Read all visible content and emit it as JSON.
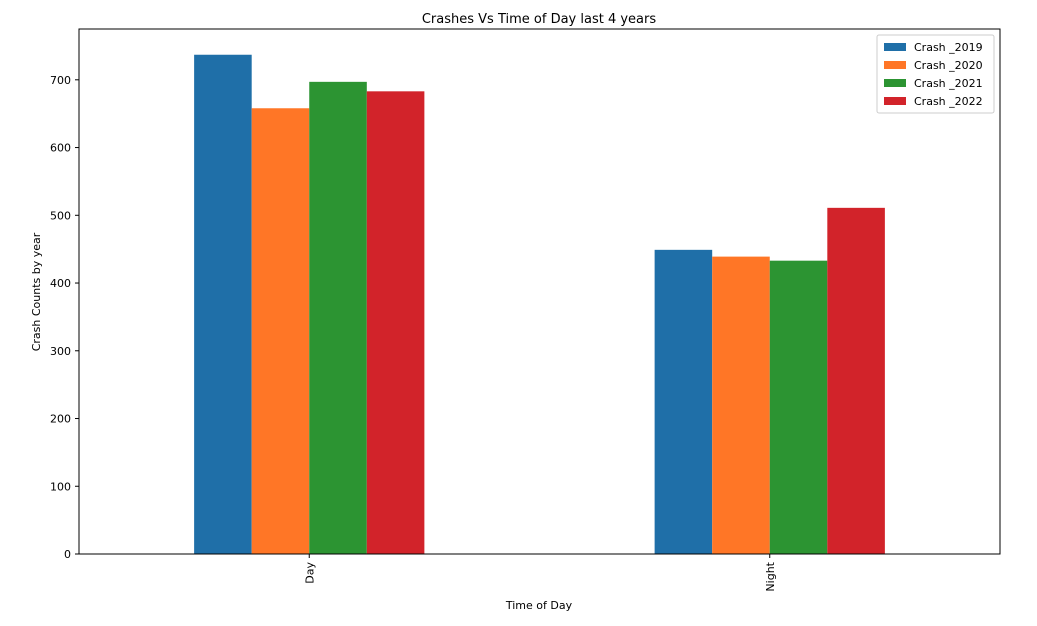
{
  "chart_data": {
    "type": "bar",
    "title": "Crashes Vs Time of Day last 4 years",
    "xlabel": "Time of Day",
    "ylabel": "Crash Counts by year",
    "categories": [
      "Day",
      "Night"
    ],
    "ylim": [
      0,
      775
    ],
    "yticks": [
      0,
      100,
      200,
      300,
      400,
      500,
      600,
      700
    ],
    "grid": false,
    "legend_position": "top-right",
    "series": [
      {
        "name": "Crash _2019",
        "color": "#1f6fa8",
        "values": [
          737,
          449
        ]
      },
      {
        "name": "Crash _2020",
        "color": "#ff7626",
        "values": [
          658,
          439
        ]
      },
      {
        "name": "Crash _2021",
        "color": "#2c9432",
        "values": [
          697,
          433
        ]
      },
      {
        "name": "Crash _2022",
        "color": "#d2232a",
        "values": [
          683,
          511
        ]
      }
    ]
  }
}
